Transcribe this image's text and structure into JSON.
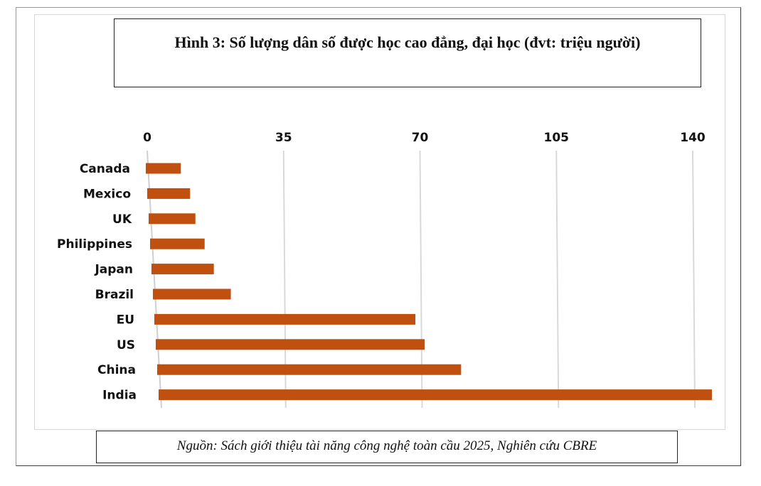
{
  "chart_data": {
    "type": "bar",
    "orientation": "horizontal",
    "title": "Hình 3: Số lượng dân số được học cao đẳng, đại học (đvt: triệu người)",
    "source": "Nguồn: Sách giới thiệu tài năng công nghệ toàn cầu 2025, Nghiên cứu CBRE",
    "categories": [
      "Canada",
      "Mexico",
      "UK",
      "Philippines",
      "Japan",
      "Brazil",
      "EU",
      "US",
      "China",
      "India"
    ],
    "values": [
      9,
      11,
      12,
      14,
      16,
      20,
      67,
      69,
      78,
      142
    ],
    "xlim": [
      0,
      140
    ],
    "ticks": [
      "0",
      "35",
      "70",
      "105",
      "140"
    ],
    "tick_values": [
      0,
      35,
      70,
      105,
      140
    ],
    "axis_position": "top",
    "grid": true,
    "bar_color": "#c0500f"
  }
}
